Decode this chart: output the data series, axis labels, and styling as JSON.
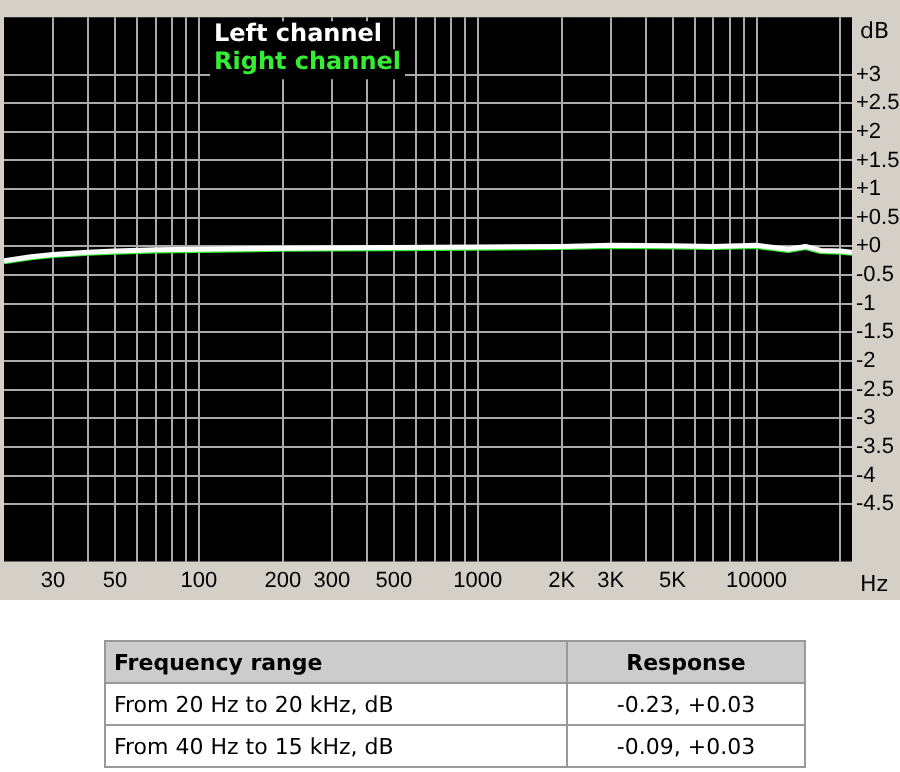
{
  "chart_data": {
    "type": "line",
    "xlabel": "Hz",
    "ylabel": "dB",
    "log": "x",
    "grid": true,
    "legend": "top left",
    "marker": "none",
    "line_style": "solid",
    "xlim": [
      20,
      22000
    ],
    "xticks": [
      {
        "value": 30,
        "label": "30"
      },
      {
        "value": 40,
        "label": null
      },
      {
        "value": 50,
        "label": "50"
      },
      {
        "value": 60,
        "label": null
      },
      {
        "value": 70,
        "label": null
      },
      {
        "value": 80,
        "label": null
      },
      {
        "value": 90,
        "label": null
      },
      {
        "value": 100,
        "label": "100"
      },
      {
        "value": 200,
        "label": "200"
      },
      {
        "value": 300,
        "label": "300"
      },
      {
        "value": 400,
        "label": null
      },
      {
        "value": 500,
        "label": "500"
      },
      {
        "value": 600,
        "label": null
      },
      {
        "value": 700,
        "label": null
      },
      {
        "value": 800,
        "label": null
      },
      {
        "value": 900,
        "label": null
      },
      {
        "value": 1000,
        "label": "1000"
      },
      {
        "value": 2000,
        "label": "2K"
      },
      {
        "value": 3000,
        "label": "3K"
      },
      {
        "value": 4000,
        "label": null
      },
      {
        "value": 5000,
        "label": "5K"
      },
      {
        "value": 6000,
        "label": null
      },
      {
        "value": 7000,
        "label": null
      },
      {
        "value": 8000,
        "label": null
      },
      {
        "value": 9000,
        "label": null
      },
      {
        "value": 10000,
        "label": "10000"
      },
      {
        "value": 20000,
        "label": null
      }
    ],
    "ylim": [
      -5.5,
      4
    ],
    "yticks": [
      {
        "value": 3,
        "label": "+3"
      },
      {
        "value": 2.5,
        "label": "+2.5"
      },
      {
        "value": 2,
        "label": "+2"
      },
      {
        "value": 1.5,
        "label": "+1.5"
      },
      {
        "value": 1,
        "label": "+1"
      },
      {
        "value": 0.5,
        "label": "+0.5"
      },
      {
        "value": 0,
        "label": "+0"
      },
      {
        "value": -0.5,
        "label": "-0.5"
      },
      {
        "value": -1,
        "label": "-1"
      },
      {
        "value": -1.5,
        "label": "-1.5"
      },
      {
        "value": -2,
        "label": "-2"
      },
      {
        "value": -2.5,
        "label": "-2.5"
      },
      {
        "value": -3,
        "label": "-3"
      },
      {
        "value": -3.5,
        "label": "-3.5"
      },
      {
        "value": -4,
        "label": "-4"
      },
      {
        "value": -4.5,
        "label": "-4.5"
      }
    ],
    "x": [
      20,
      25,
      30,
      40,
      50,
      70,
      100,
      200,
      500,
      1000,
      2000,
      3000,
      5000,
      7000,
      10000,
      13000,
      15000,
      17000,
      20000,
      22000
    ],
    "series": [
      {
        "name": "Left channel",
        "color": "#ffffff",
        "values": [
          -0.25,
          -0.18,
          -0.14,
          -0.1,
          -0.08,
          -0.06,
          -0.05,
          -0.03,
          -0.02,
          -0.01,
          0,
          0.02,
          0.01,
          0,
          0.02,
          -0.05,
          0,
          -0.07,
          -0.08,
          -0.1
        ]
      },
      {
        "name": "Right channel",
        "color": "#33ee33",
        "values": [
          -0.27,
          -0.2,
          -0.16,
          -0.12,
          -0.1,
          -0.08,
          -0.07,
          -0.05,
          -0.04,
          -0.03,
          -0.02,
          0,
          -0.01,
          -0.02,
          0,
          -0.07,
          -0.02,
          -0.09,
          -0.1,
          -0.12
        ]
      }
    ],
    "annotations": [
      "Frequency range",
      "Response",
      "From 20 Hz to 20 kHz, dB",
      "-0.23, +0.03",
      "From 40 Hz to 15 kHz, dB",
      "-0.09, +0.03"
    ]
  }
}
